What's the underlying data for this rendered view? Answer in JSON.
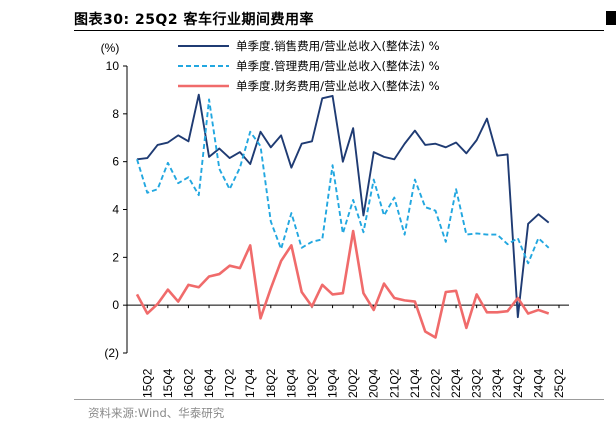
{
  "title": "图表30:  25Q2 客车行业期间费用率",
  "source": "资料来源:Wind、华泰研究",
  "chart_data": {
    "type": "line",
    "ylabel": "(%)",
    "ylim": [
      -2,
      10
    ],
    "yticks": [
      {
        "v": 10,
        "label": "10"
      },
      {
        "v": 8,
        "label": "8"
      },
      {
        "v": 6,
        "label": "6"
      },
      {
        "v": 4,
        "label": "4"
      },
      {
        "v": 2,
        "label": "2"
      },
      {
        "v": 0,
        "label": "0"
      },
      {
        "v": -2,
        "label": "(2)"
      }
    ],
    "x": [
      "15Q1",
      "15Q2",
      "15Q3",
      "15Q4",
      "16Q1",
      "16Q2",
      "16Q3",
      "16Q4",
      "17Q1",
      "17Q2",
      "17Q3",
      "17Q4",
      "18Q1",
      "18Q2",
      "18Q3",
      "18Q4",
      "19Q1",
      "19Q2",
      "19Q3",
      "19Q4",
      "20Q1",
      "20Q2",
      "20Q3",
      "20Q4",
      "21Q1",
      "21Q2",
      "21Q3",
      "21Q4",
      "22Q1",
      "22Q2",
      "22Q3",
      "22Q4",
      "23Q1",
      "23Q2",
      "23Q3",
      "23Q4",
      "24Q1",
      "24Q2",
      "24Q3",
      "24Q4",
      "25Q1",
      "25Q2"
    ],
    "xtick_labels": [
      "15Q2",
      "15Q4",
      "16Q2",
      "16Q4",
      "17Q2",
      "17Q4",
      "18Q2",
      "18Q4",
      "19Q2",
      "19Q4",
      "20Q2",
      "20Q4",
      "21Q2",
      "21Q4",
      "22Q2",
      "22Q4",
      "23Q2",
      "23Q4",
      "24Q2",
      "24Q4",
      "25Q2"
    ],
    "series": [
      {
        "name": "单季度.销售费用/营业总收入(整体法) %",
        "color": "#1f3b73",
        "style": "solid",
        "values": [
          6.1,
          6.15,
          6.7,
          6.8,
          7.1,
          6.85,
          8.8,
          6.2,
          6.55,
          6.15,
          6.4,
          5.9,
          7.25,
          6.6,
          7.1,
          5.75,
          6.75,
          6.85,
          8.65,
          8.75,
          6.0,
          7.4,
          3.75,
          6.4,
          6.2,
          6.1,
          6.75,
          7.3,
          6.7,
          6.75,
          6.6,
          6.8,
          6.35,
          6.9,
          7.8,
          6.25,
          6.3,
          -0.5,
          3.4,
          3.8,
          3.45,
          null
        ]
      },
      {
        "name": "单季度.管理费用/营业总收入(整体法) %",
        "color": "#22a7e0",
        "style": "dashed",
        "values": [
          6.1,
          4.7,
          4.85,
          5.95,
          5.1,
          5.35,
          4.6,
          8.6,
          5.7,
          4.85,
          5.75,
          7.25,
          6.65,
          3.5,
          2.35,
          3.85,
          2.4,
          2.65,
          2.75,
          5.85,
          3.0,
          4.4,
          3.05,
          5.25,
          3.75,
          4.5,
          2.95,
          5.25,
          4.1,
          3.95,
          2.65,
          4.85,
          2.95,
          3.0,
          2.95,
          2.95,
          2.55,
          2.8,
          1.75,
          2.8,
          2.4,
          null
        ]
      },
      {
        "name": "单季度.财务费用/营业总收入(整体法) %",
        "color": "#f06b6b",
        "style": "solid",
        "values": [
          0.45,
          -0.35,
          0.05,
          0.65,
          0.15,
          0.85,
          0.75,
          1.2,
          1.3,
          1.65,
          1.55,
          2.5,
          -0.55,
          0.7,
          1.85,
          2.5,
          0.55,
          -0.05,
          0.85,
          0.45,
          0.5,
          3.1,
          0.5,
          -0.2,
          0.9,
          0.3,
          0.2,
          0.15,
          -1.1,
          -1.35,
          0.55,
          0.6,
          -0.95,
          0.45,
          -0.3,
          -0.3,
          -0.25,
          0.3,
          -0.35,
          -0.2,
          -0.35,
          null
        ]
      }
    ]
  }
}
